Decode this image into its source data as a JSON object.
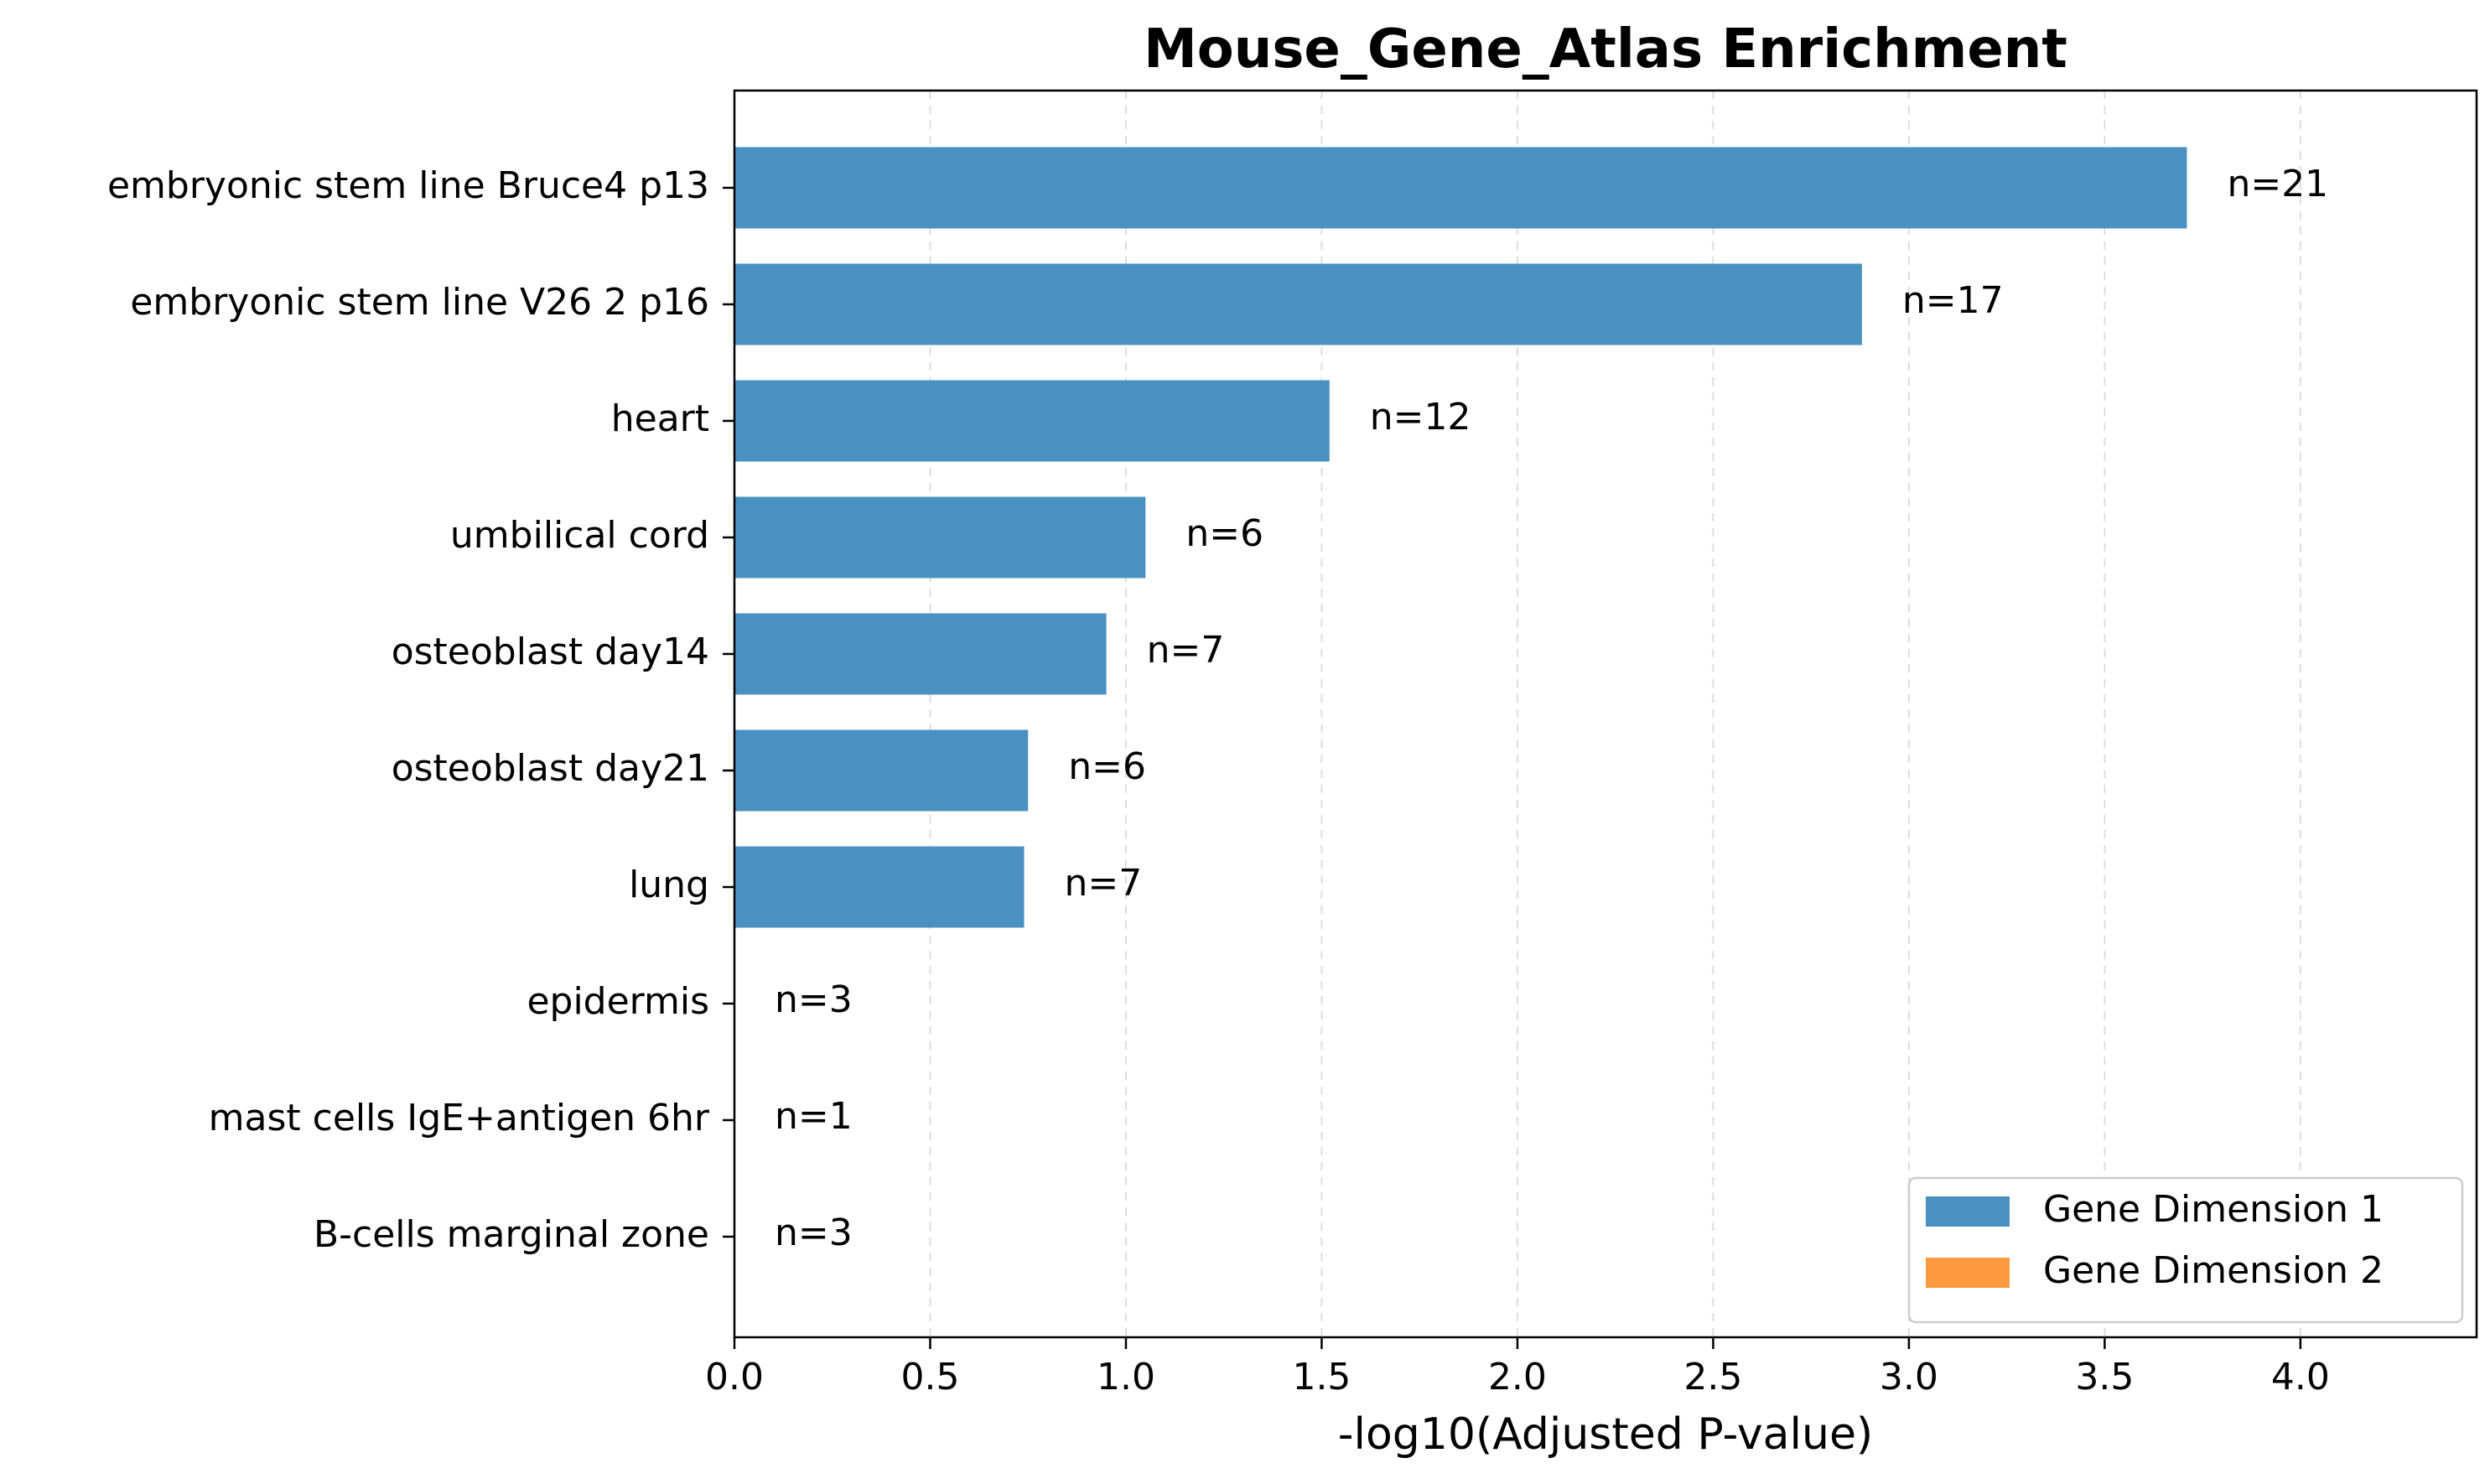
{
  "chart_data": {
    "type": "bar",
    "orientation": "horizontal",
    "title": "Mouse_Gene_Atlas Enrichment",
    "xlabel": "-log10(Adjusted P-value)",
    "ylabel": "",
    "xlim": [
      0,
      4.45
    ],
    "xticks": [
      "0.0",
      "0.5",
      "1.0",
      "1.5",
      "2.0",
      "2.5",
      "3.0",
      "3.5",
      "4.0"
    ],
    "grid": "vertical dashed",
    "legend_position": "lower-right",
    "categories": [
      "embryonic stem line Bruce4 p13",
      "embryonic stem line V26 2 p16",
      "heart",
      "umbilical cord",
      "osteoblast day14",
      "osteoblast day21",
      "lung",
      "epidermis",
      "mast cells IgE+antigen 6hr",
      "B-cells marginal zone"
    ],
    "series": [
      {
        "name": "Gene Dimension 1",
        "color": "#4a91c2",
        "values": [
          3.71,
          2.88,
          1.52,
          1.05,
          0.95,
          0.75,
          0.74,
          0,
          0,
          0
        ]
      },
      {
        "name": "Gene Dimension 2",
        "color": "#ff9a40",
        "values": [
          0,
          0,
          0,
          0,
          0,
          0,
          0,
          0,
          0,
          0
        ]
      }
    ],
    "data_labels": [
      "n=21",
      "n=17",
      "n=12",
      "n=6",
      "n=7",
      "n=6",
      "n=7",
      "n=3",
      "n=1",
      "n=3"
    ]
  }
}
